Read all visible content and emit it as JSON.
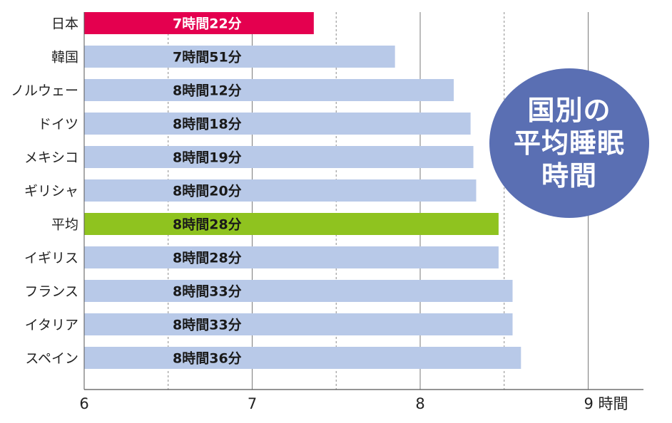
{
  "chart_data": {
    "type": "bar",
    "orientation": "horizontal",
    "title_lines": [
      "国別の",
      "平均睡眠",
      "時間"
    ],
    "categories": [
      "日本",
      "韓国",
      "ノルウェー",
      "ドイツ",
      "メキシコ",
      "ギリシャ",
      "平均",
      "イギリス",
      "フランス",
      "イタリア",
      "スペイン"
    ],
    "values": [
      7.3667,
      7.85,
      8.2,
      8.3,
      8.3167,
      8.3333,
      8.4667,
      8.4667,
      8.55,
      8.55,
      8.6
    ],
    "data_labels": [
      "7時間22分",
      "7時間51分",
      "8時間12分",
      "8時間18分",
      "8時間19分",
      "8時間20分",
      "8時間28分",
      "8時間28分",
      "8時間33分",
      "8時間33分",
      "8時間36分"
    ],
    "bar_colors": [
      "#e4004f",
      "#b8c9e8",
      "#b8c9e8",
      "#b8c9e8",
      "#b8c9e8",
      "#b8c9e8",
      "#8fc31f",
      "#b8c9e8",
      "#b8c9e8",
      "#b8c9e8",
      "#b8c9e8"
    ],
    "label_colors": [
      "#ffffff",
      "#1a1a1a",
      "#1a1a1a",
      "#1a1a1a",
      "#1a1a1a",
      "#1a1a1a",
      "#1a1a1a",
      "#1a1a1a",
      "#1a1a1a",
      "#1a1a1a",
      "#1a1a1a"
    ],
    "xlim": [
      6,
      9.33
    ],
    "xticks": [
      6,
      7,
      8,
      9
    ],
    "xtick_labels": [
      "6",
      "7",
      "8",
      "9 時間"
    ],
    "grid": "vertical dashed at half-hours, solid at hours",
    "badge_color": "#5a6fb3"
  }
}
